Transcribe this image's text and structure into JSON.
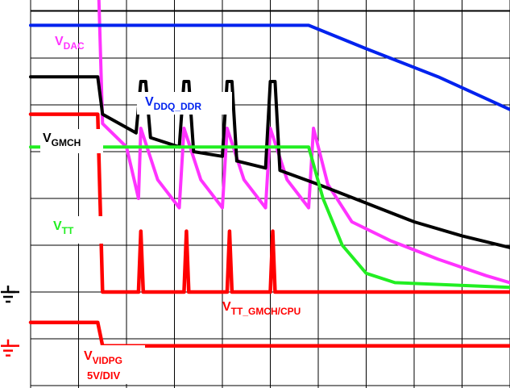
{
  "chart_data": {
    "type": "line",
    "title": "",
    "xlabel": "",
    "ylabel": "",
    "grid": true,
    "grid_divisions": {
      "x": 10,
      "y": 8
    },
    "scale_note": "5V/DIV",
    "series": [
      {
        "name": "VDAC",
        "label_main": "V",
        "label_sub": "DAC",
        "color": "#ff33ff",
        "points": [
          [
            0,
            7.1
          ],
          [
            1.4,
            7.1
          ],
          [
            1.5,
            3.6
          ],
          [
            2.0,
            3.1
          ],
          [
            2.25,
            2.0
          ],
          [
            2.3,
            3.5
          ],
          [
            2.65,
            2.4
          ],
          [
            3.1,
            1.8
          ],
          [
            3.2,
            3.5
          ],
          [
            3.55,
            2.4
          ],
          [
            4.0,
            1.8
          ],
          [
            4.1,
            3.5
          ],
          [
            4.45,
            2.4
          ],
          [
            4.9,
            1.8
          ],
          [
            5.0,
            3.5
          ],
          [
            5.35,
            2.4
          ],
          [
            5.8,
            1.8
          ],
          [
            5.9,
            3.5
          ],
          [
            6.2,
            2.3
          ],
          [
            6.7,
            1.5
          ],
          [
            7.5,
            1.1
          ],
          [
            8.5,
            0.7
          ],
          [
            9.5,
            0.35
          ],
          [
            10.0,
            0.2
          ]
        ]
      },
      {
        "name": "VDDQ_DDR",
        "label_main": "V",
        "label_sub": "DDQ_DDR",
        "color": "#0022ee",
        "points": [
          [
            0,
            5.7
          ],
          [
            5.8,
            5.7
          ],
          [
            7.0,
            5.2
          ],
          [
            8.5,
            4.6
          ],
          [
            10.0,
            3.9
          ]
        ]
      },
      {
        "name": "VGMCH",
        "label_main": "V",
        "label_sub": "GMCH",
        "color": "#000000",
        "points": [
          [
            0,
            4.6
          ],
          [
            1.4,
            4.6
          ],
          [
            1.5,
            3.8
          ],
          [
            2.2,
            3.4
          ],
          [
            2.3,
            4.5
          ],
          [
            2.4,
            4.5
          ],
          [
            2.5,
            3.3
          ],
          [
            3.1,
            3.1
          ],
          [
            3.2,
            4.5
          ],
          [
            3.3,
            4.5
          ],
          [
            3.4,
            3.0
          ],
          [
            4.0,
            2.9
          ],
          [
            4.1,
            4.5
          ],
          [
            4.2,
            4.5
          ],
          [
            4.3,
            2.8
          ],
          [
            4.9,
            2.65
          ],
          [
            5.0,
            4.5
          ],
          [
            5.1,
            4.5
          ],
          [
            5.2,
            2.6
          ],
          [
            6.0,
            2.3
          ],
          [
            7.0,
            1.9
          ],
          [
            8.0,
            1.5
          ],
          [
            9.0,
            1.2
          ],
          [
            10.0,
            0.95
          ]
        ]
      },
      {
        "name": "VTT",
        "label_main": "V",
        "label_sub": "TT",
        "color": "#22ee22",
        "points": [
          [
            0,
            3.1
          ],
          [
            5.8,
            3.1
          ],
          [
            6.1,
            2.0
          ],
          [
            6.5,
            1.0
          ],
          [
            7.0,
            0.4
          ],
          [
            7.6,
            0.2
          ],
          [
            10.0,
            0.1
          ]
        ]
      },
      {
        "name": "VTT_GMCH/CPU",
        "label_main": "V",
        "label_sub": "TT_GMCH/CPU",
        "color": "#ff0000",
        "points": [
          [
            0,
            3.8
          ],
          [
            1.4,
            3.8
          ],
          [
            1.5,
            0
          ],
          [
            2.25,
            0
          ],
          [
            2.3,
            1.3
          ],
          [
            2.35,
            0
          ],
          [
            3.2,
            0
          ],
          [
            3.25,
            1.3
          ],
          [
            3.3,
            0
          ],
          [
            4.1,
            0
          ],
          [
            4.15,
            1.3
          ],
          [
            4.2,
            0
          ],
          [
            5.0,
            0
          ],
          [
            5.05,
            1.3
          ],
          [
            5.1,
            0
          ],
          [
            10.0,
            0
          ]
        ]
      },
      {
        "name": "VVIDPG",
        "label_main": "V",
        "label_sub": "VIDPG",
        "color": "#ff0000",
        "points": [
          [
            0,
            -0.65
          ],
          [
            1.4,
            -0.65
          ],
          [
            1.5,
            -1.15
          ],
          [
            10.0,
            -1.15
          ]
        ]
      }
    ]
  },
  "ground_markers": [
    {
      "name": "ground-marker-black",
      "color": "#000000"
    },
    {
      "name": "ground-marker-red",
      "color": "#ff0000"
    }
  ]
}
